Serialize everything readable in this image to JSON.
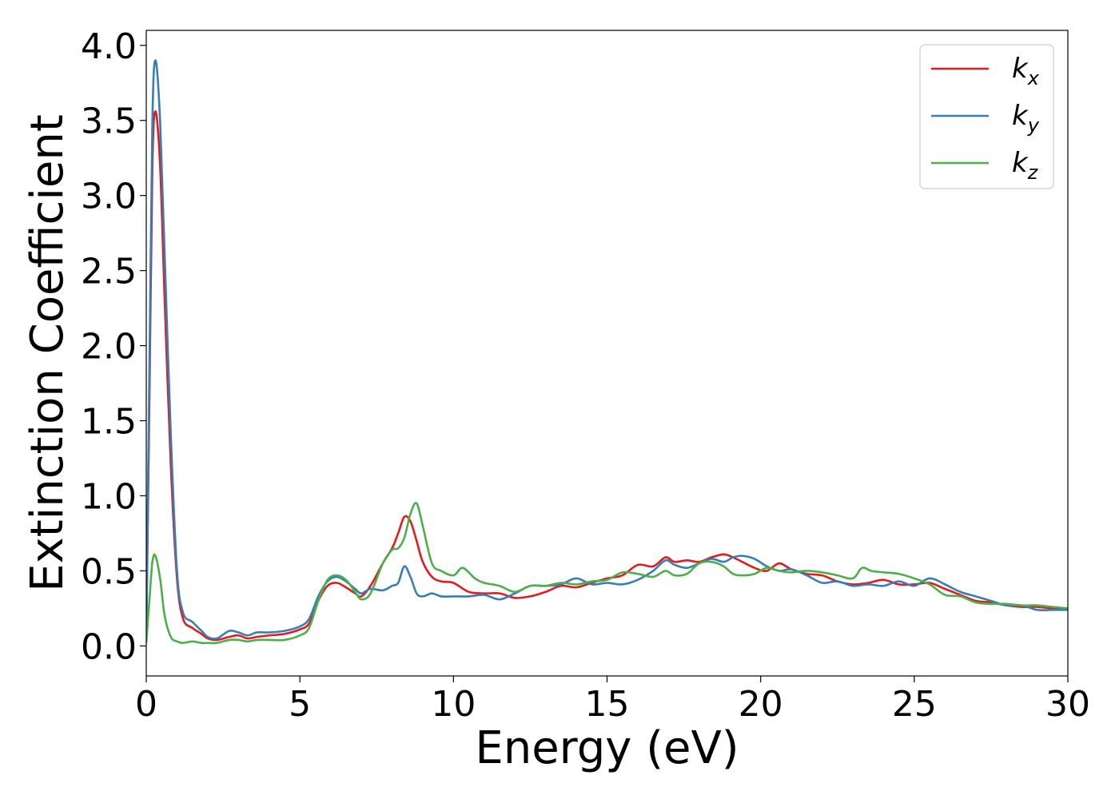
{
  "chart_data": {
    "type": "line",
    "title": "",
    "xlabel": "Energy (eV)",
    "ylabel": "Extinction Coefficient",
    "xlim": [
      0,
      30
    ],
    "ylim": [
      -0.2,
      4.1
    ],
    "xticks": [
      0,
      5,
      10,
      15,
      20,
      25,
      30
    ],
    "xtick_labels": [
      "0",
      "5",
      "10",
      "15",
      "20",
      "25",
      "30"
    ],
    "yticks": [
      0.0,
      0.5,
      1.0,
      1.5,
      2.0,
      2.5,
      3.0,
      3.5,
      4.0
    ],
    "ytick_labels": [
      "0.0",
      "0.5",
      "1.0",
      "1.5",
      "2.0",
      "2.5",
      "3.0",
      "3.5",
      "4.0"
    ],
    "grid": false,
    "legend_position": "top-right",
    "series": [
      {
        "name": "k_x",
        "legend_base": "k",
        "legend_sub": "x",
        "color": "#e41a1c",
        "points": [
          [
            0,
            0.05
          ],
          [
            0.1,
            1.6
          ],
          [
            0.2,
            3.2
          ],
          [
            0.3,
            3.56
          ],
          [
            0.45,
            3.2
          ],
          [
            0.6,
            2.3
          ],
          [
            0.8,
            1.2
          ],
          [
            1.0,
            0.45
          ],
          [
            1.2,
            0.18
          ],
          [
            1.5,
            0.12
          ],
          [
            1.8,
            0.08
          ],
          [
            2.0,
            0.05
          ],
          [
            2.3,
            0.04
          ],
          [
            2.7,
            0.06
          ],
          [
            3.0,
            0.07
          ],
          [
            3.3,
            0.05
          ],
          [
            3.6,
            0.06
          ],
          [
            4.0,
            0.07
          ],
          [
            4.5,
            0.08
          ],
          [
            5.0,
            0.11
          ],
          [
            5.3,
            0.15
          ],
          [
            5.6,
            0.3
          ],
          [
            5.9,
            0.4
          ],
          [
            6.2,
            0.42
          ],
          [
            6.5,
            0.39
          ],
          [
            6.8,
            0.35
          ],
          [
            7.0,
            0.33
          ],
          [
            7.3,
            0.4
          ],
          [
            7.7,
            0.55
          ],
          [
            8.0,
            0.65
          ],
          [
            8.2,
            0.75
          ],
          [
            8.4,
            0.86
          ],
          [
            8.6,
            0.83
          ],
          [
            8.8,
            0.7
          ],
          [
            9.0,
            0.56
          ],
          [
            9.3,
            0.46
          ],
          [
            9.6,
            0.43
          ],
          [
            10.0,
            0.42
          ],
          [
            10.5,
            0.36
          ],
          [
            11.0,
            0.35
          ],
          [
            11.5,
            0.35
          ],
          [
            12.0,
            0.32
          ],
          [
            12.5,
            0.33
          ],
          [
            13.0,
            0.36
          ],
          [
            13.5,
            0.4
          ],
          [
            14.0,
            0.39
          ],
          [
            14.5,
            0.42
          ],
          [
            15.0,
            0.45
          ],
          [
            15.5,
            0.47
          ],
          [
            16.0,
            0.54
          ],
          [
            16.5,
            0.53
          ],
          [
            16.9,
            0.59
          ],
          [
            17.2,
            0.56
          ],
          [
            17.6,
            0.57
          ],
          [
            18.0,
            0.56
          ],
          [
            18.4,
            0.59
          ],
          [
            18.8,
            0.61
          ],
          [
            19.1,
            0.59
          ],
          [
            19.4,
            0.56
          ],
          [
            19.8,
            0.52
          ],
          [
            20.2,
            0.5
          ],
          [
            20.6,
            0.55
          ],
          [
            21.0,
            0.51
          ],
          [
            21.5,
            0.48
          ],
          [
            22.0,
            0.47
          ],
          [
            22.5,
            0.43
          ],
          [
            23.0,
            0.41
          ],
          [
            23.5,
            0.42
          ],
          [
            24.0,
            0.44
          ],
          [
            24.5,
            0.41
          ],
          [
            25.0,
            0.41
          ],
          [
            25.5,
            0.42
          ],
          [
            26.0,
            0.38
          ],
          [
            26.5,
            0.34
          ],
          [
            27.0,
            0.3
          ],
          [
            27.5,
            0.29
          ],
          [
            28.0,
            0.27
          ],
          [
            28.5,
            0.26
          ],
          [
            29.0,
            0.26
          ],
          [
            29.5,
            0.25
          ],
          [
            30.0,
            0.25
          ]
        ]
      },
      {
        "name": "k_y",
        "legend_base": "k",
        "legend_sub": "y",
        "color": "#377eb8",
        "points": [
          [
            0,
            0.05
          ],
          [
            0.1,
            1.8
          ],
          [
            0.2,
            3.5
          ],
          [
            0.3,
            3.9
          ],
          [
            0.45,
            3.5
          ],
          [
            0.6,
            2.6
          ],
          [
            0.8,
            1.4
          ],
          [
            1.0,
            0.5
          ],
          [
            1.2,
            0.22
          ],
          [
            1.5,
            0.16
          ],
          [
            1.8,
            0.1
          ],
          [
            2.0,
            0.06
          ],
          [
            2.3,
            0.05
          ],
          [
            2.7,
            0.1
          ],
          [
            3.0,
            0.09
          ],
          [
            3.3,
            0.07
          ],
          [
            3.6,
            0.09
          ],
          [
            4.0,
            0.09
          ],
          [
            4.5,
            0.1
          ],
          [
            5.0,
            0.13
          ],
          [
            5.3,
            0.18
          ],
          [
            5.6,
            0.33
          ],
          [
            5.9,
            0.43
          ],
          [
            6.2,
            0.46
          ],
          [
            6.5,
            0.43
          ],
          [
            6.8,
            0.38
          ],
          [
            7.0,
            0.35
          ],
          [
            7.3,
            0.38
          ],
          [
            7.7,
            0.37
          ],
          [
            8.0,
            0.4
          ],
          [
            8.2,
            0.42
          ],
          [
            8.4,
            0.53
          ],
          [
            8.6,
            0.46
          ],
          [
            8.8,
            0.35
          ],
          [
            9.0,
            0.33
          ],
          [
            9.3,
            0.35
          ],
          [
            9.6,
            0.33
          ],
          [
            10.0,
            0.33
          ],
          [
            10.5,
            0.33
          ],
          [
            11.0,
            0.34
          ],
          [
            11.5,
            0.31
          ],
          [
            12.0,
            0.35
          ],
          [
            12.5,
            0.4
          ],
          [
            13.0,
            0.4
          ],
          [
            13.5,
            0.41
          ],
          [
            14.0,
            0.45
          ],
          [
            14.5,
            0.41
          ],
          [
            15.0,
            0.42
          ],
          [
            15.5,
            0.41
          ],
          [
            16.0,
            0.44
          ],
          [
            16.5,
            0.5
          ],
          [
            16.9,
            0.57
          ],
          [
            17.2,
            0.54
          ],
          [
            17.6,
            0.52
          ],
          [
            18.0,
            0.55
          ],
          [
            18.4,
            0.58
          ],
          [
            18.8,
            0.56
          ],
          [
            19.1,
            0.59
          ],
          [
            19.4,
            0.6
          ],
          [
            19.8,
            0.58
          ],
          [
            20.2,
            0.53
          ],
          [
            20.6,
            0.5
          ],
          [
            21.0,
            0.51
          ],
          [
            21.5,
            0.47
          ],
          [
            22.0,
            0.42
          ],
          [
            22.5,
            0.43
          ],
          [
            23.0,
            0.4
          ],
          [
            23.5,
            0.41
          ],
          [
            24.0,
            0.4
          ],
          [
            24.5,
            0.43
          ],
          [
            25.0,
            0.4
          ],
          [
            25.5,
            0.45
          ],
          [
            26.0,
            0.41
          ],
          [
            26.5,
            0.36
          ],
          [
            27.0,
            0.33
          ],
          [
            27.5,
            0.3
          ],
          [
            28.0,
            0.27
          ],
          [
            28.5,
            0.27
          ],
          [
            29.0,
            0.24
          ],
          [
            29.5,
            0.24
          ],
          [
            30.0,
            0.24
          ]
        ]
      },
      {
        "name": "k_z",
        "legend_base": "k",
        "legend_sub": "z",
        "color": "#4daf4a",
        "points": [
          [
            0,
            0.02
          ],
          [
            0.1,
            0.3
          ],
          [
            0.2,
            0.56
          ],
          [
            0.3,
            0.6
          ],
          [
            0.45,
            0.45
          ],
          [
            0.6,
            0.2
          ],
          [
            0.8,
            0.06
          ],
          [
            1.0,
            0.03
          ],
          [
            1.2,
            0.02
          ],
          [
            1.5,
            0.03
          ],
          [
            1.8,
            0.02
          ],
          [
            2.0,
            0.02
          ],
          [
            2.3,
            0.02
          ],
          [
            2.7,
            0.04
          ],
          [
            3.0,
            0.04
          ],
          [
            3.3,
            0.03
          ],
          [
            3.6,
            0.04
          ],
          [
            4.0,
            0.04
          ],
          [
            4.5,
            0.04
          ],
          [
            5.0,
            0.07
          ],
          [
            5.3,
            0.12
          ],
          [
            5.6,
            0.3
          ],
          [
            5.9,
            0.44
          ],
          [
            6.2,
            0.47
          ],
          [
            6.5,
            0.44
          ],
          [
            6.8,
            0.36
          ],
          [
            7.0,
            0.31
          ],
          [
            7.3,
            0.35
          ],
          [
            7.7,
            0.55
          ],
          [
            8.0,
            0.64
          ],
          [
            8.2,
            0.65
          ],
          [
            8.4,
            0.72
          ],
          [
            8.6,
            0.88
          ],
          [
            8.8,
            0.95
          ],
          [
            9.0,
            0.8
          ],
          [
            9.3,
            0.55
          ],
          [
            9.6,
            0.5
          ],
          [
            10.0,
            0.47
          ],
          [
            10.3,
            0.52
          ],
          [
            10.7,
            0.45
          ],
          [
            11.0,
            0.42
          ],
          [
            11.5,
            0.4
          ],
          [
            12.0,
            0.36
          ],
          [
            12.5,
            0.4
          ],
          [
            13.0,
            0.4
          ],
          [
            13.5,
            0.42
          ],
          [
            14.0,
            0.41
          ],
          [
            14.5,
            0.43
          ],
          [
            15.0,
            0.44
          ],
          [
            15.5,
            0.49
          ],
          [
            16.0,
            0.48
          ],
          [
            16.5,
            0.46
          ],
          [
            16.9,
            0.5
          ],
          [
            17.2,
            0.47
          ],
          [
            17.6,
            0.48
          ],
          [
            18.0,
            0.55
          ],
          [
            18.4,
            0.56
          ],
          [
            18.8,
            0.53
          ],
          [
            19.1,
            0.48
          ],
          [
            19.4,
            0.47
          ],
          [
            19.8,
            0.48
          ],
          [
            20.2,
            0.52
          ],
          [
            20.6,
            0.5
          ],
          [
            21.0,
            0.49
          ],
          [
            21.5,
            0.5
          ],
          [
            22.0,
            0.49
          ],
          [
            22.5,
            0.47
          ],
          [
            23.0,
            0.45
          ],
          [
            23.3,
            0.52
          ],
          [
            23.6,
            0.5
          ],
          [
            24.0,
            0.49
          ],
          [
            24.5,
            0.48
          ],
          [
            25.0,
            0.45
          ],
          [
            25.5,
            0.41
          ],
          [
            26.0,
            0.34
          ],
          [
            26.5,
            0.33
          ],
          [
            27.0,
            0.29
          ],
          [
            27.5,
            0.28
          ],
          [
            28.0,
            0.28
          ],
          [
            28.5,
            0.27
          ],
          [
            29.0,
            0.27
          ],
          [
            29.5,
            0.26
          ],
          [
            30.0,
            0.25
          ]
        ]
      }
    ]
  }
}
